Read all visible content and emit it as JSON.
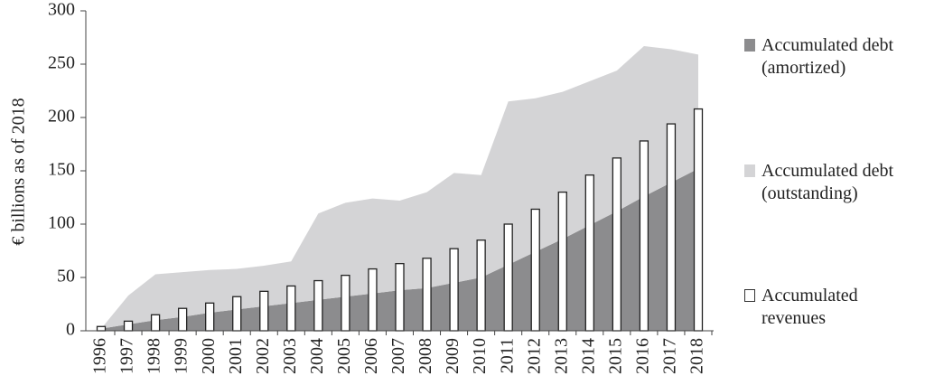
{
  "chart_data": {
    "type": "area",
    "ylabel": "€ billions as of 2018",
    "categories": [
      "1996",
      "1997",
      "1998",
      "1999",
      "2000",
      "2001",
      "2002",
      "2003",
      "2004",
      "2005",
      "2006",
      "2007",
      "2008",
      "2009",
      "2010",
      "2011",
      "2012",
      "2013",
      "2014",
      "2015",
      "2016",
      "2017",
      "2018"
    ],
    "series": [
      {
        "name": "Accumulated debt (amortized)",
        "type": "area",
        "color": "#8c8c8e",
        "values": [
          2,
          6,
          10,
          13,
          17,
          20,
          23,
          26,
          29,
          32,
          35,
          38,
          40,
          45,
          50,
          62,
          74,
          86,
          99,
          112,
          126,
          139,
          152
        ]
      },
      {
        "name": "Accumulated debt (outstanding)",
        "type": "area",
        "color": "#d4d4d6",
        "values": [
          0,
          27,
          43,
          42,
          40,
          38,
          38,
          39,
          81,
          88,
          89,
          84,
          90,
          103,
          96,
          153,
          144,
          138,
          135,
          132,
          141,
          125,
          107
        ]
      },
      {
        "name": "Accumulated revenues",
        "type": "bar",
        "color": "#ffffff",
        "values": [
          4,
          9,
          15,
          21,
          26,
          32,
          37,
          42,
          47,
          52,
          58,
          63,
          68,
          77,
          85,
          100,
          114,
          130,
          146,
          162,
          178,
          194,
          208
        ]
      }
    ],
    "ylim": [
      0,
      300
    ],
    "yticks": [
      0,
      50,
      100,
      150,
      200,
      250,
      300
    ],
    "grid": false,
    "legend": "right"
  }
}
